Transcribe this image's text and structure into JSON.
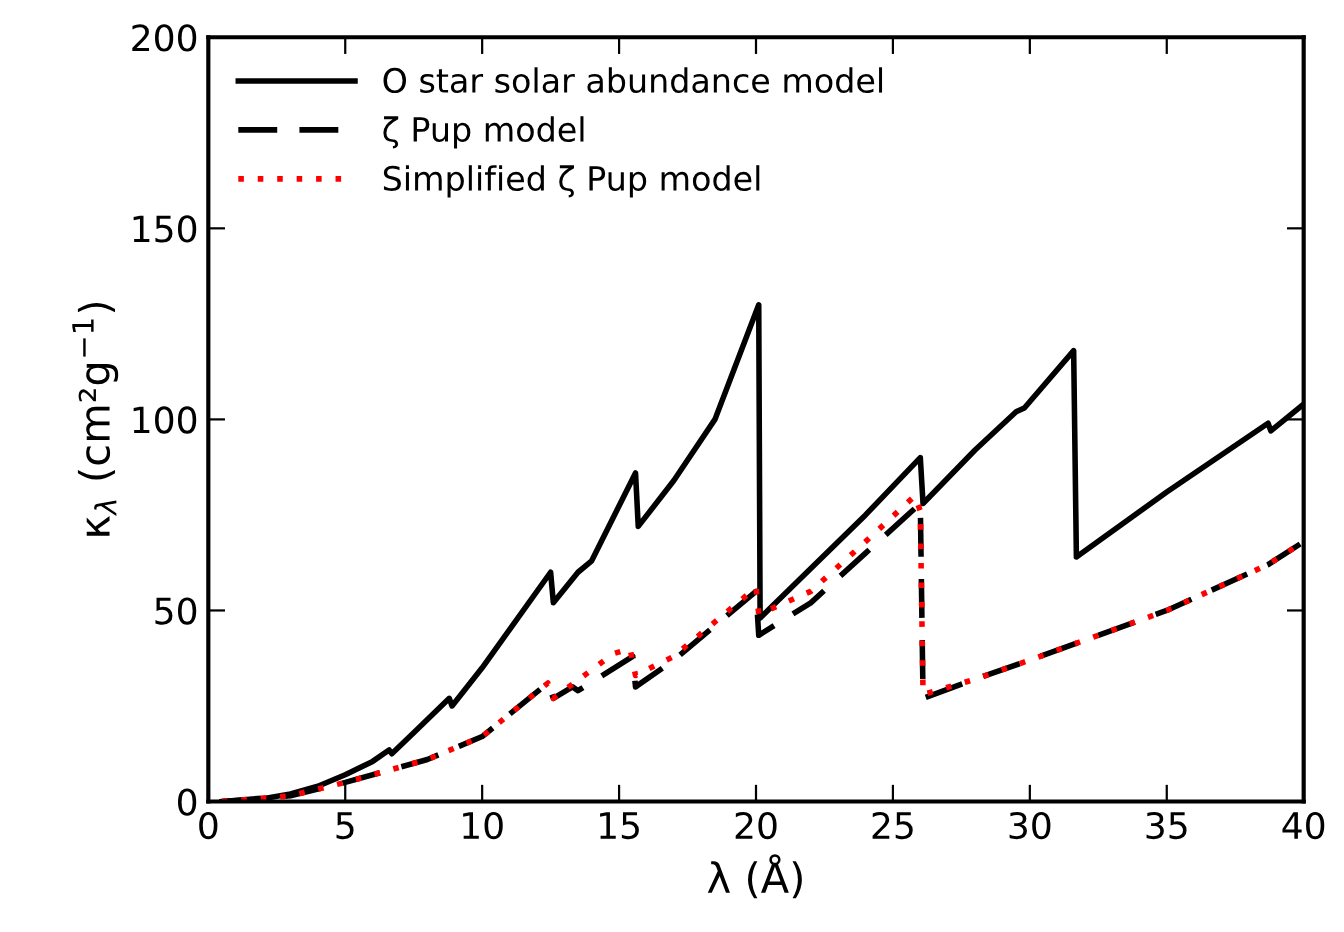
{
  "chart_data": {
    "type": "line",
    "xlabel": "λ (Å)",
    "ylabel": "κ$_{λ}$ (cm²g$^{−1}$)",
    "xlim": [
      0,
      40
    ],
    "ylim": [
      0,
      200
    ],
    "xticks": [
      0,
      5,
      10,
      15,
      20,
      25,
      30,
      35,
      40
    ],
    "yticks": [
      0,
      50,
      100,
      150,
      200
    ],
    "legend": "top left",
    "grid": false,
    "series": [
      {
        "name": "O star solar abundance model",
        "color": "#000000",
        "line_style": "solid",
        "x": [
          0.5,
          2,
          3,
          4,
          5,
          6,
          6.6,
          6.7,
          7.5,
          8.8,
          8.9,
          10,
          11,
          12.5,
          12.6,
          13.5,
          14,
          15.6,
          15.7,
          17,
          18.5,
          20.1,
          20.15,
          22,
          24,
          26,
          26.1,
          28,
          29.5,
          29.8,
          31.6,
          31.7,
          35,
          38.7,
          38.8,
          40
        ],
        "values": [
          0,
          0.7,
          2,
          4,
          7,
          10.5,
          13.5,
          12.5,
          18,
          27,
          25,
          35,
          45,
          60,
          52,
          60,
          63,
          86,
          72,
          84,
          100,
          130,
          48,
          61,
          75,
          90,
          78,
          92,
          102,
          103,
          118,
          64,
          81,
          99,
          97,
          104
        ]
      },
      {
        "name": "ζ Pup model",
        "color": "#000000",
        "line_style": "dashed",
        "x": [
          0.5,
          3,
          5,
          7,
          8,
          10,
          12.4,
          12.6,
          13.3,
          13.5,
          15.5,
          15.6,
          17,
          20,
          20.1,
          22,
          24,
          26,
          26.1,
          28,
          30,
          35,
          38.7,
          40
        ],
        "values": [
          0,
          1.5,
          5,
          9,
          11,
          17,
          31,
          27,
          30,
          29,
          38,
          30,
          37,
          55,
          43.5,
          52,
          65,
          78,
          27,
          32,
          37,
          50,
          62,
          68
        ]
      },
      {
        "name": "Simplified ζ Pup model",
        "color": "#ff0000",
        "line_style": "dotted",
        "x": [
          0.5,
          3,
          5,
          7,
          8,
          10,
          12.4,
          12.6,
          14.8,
          15.4,
          15.6,
          17,
          20,
          20.1,
          22,
          24,
          25.8,
          26,
          26.1,
          28,
          30,
          35,
          38.7,
          40
        ],
        "values": [
          0,
          1.5,
          5,
          9,
          11,
          17,
          31,
          27,
          38.7,
          40,
          33,
          38,
          56,
          49,
          55,
          68,
          80,
          76,
          28,
          32,
          37,
          50,
          62,
          68
        ]
      }
    ]
  }
}
